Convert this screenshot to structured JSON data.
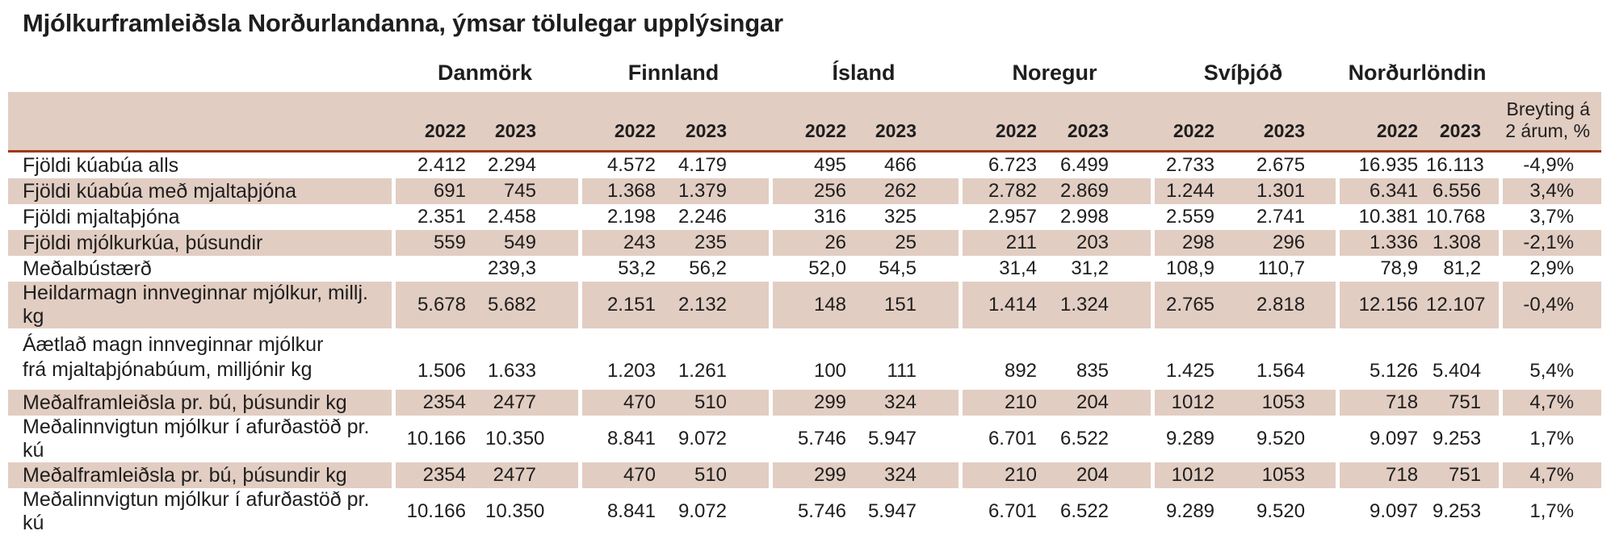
{
  "title": "Mjólkurframleiðsla Norðurlandanna, ýmsar tölulegar upplýsingar",
  "chart_data": {
    "type": "table",
    "title": "Mjólkurframleiðsla Norðurlandanna, ýmsar tölulegar upplýsingar",
    "column_groups": [
      "Danmörk",
      "Finnland",
      "Ísland",
      "Noregur",
      "Svíþjóð",
      "Norðurlöndin"
    ],
    "years": [
      "2022",
      "2023"
    ],
    "change_header_line1": "Breyting á",
    "change_header_line2": "2 árum, %",
    "rows": [
      {
        "label_lines": [
          "Fjöldi kúabúa alls"
        ],
        "shaded": false,
        "values": [
          "2.412",
          "2.294",
          "4.572",
          "4.179",
          "495",
          "466",
          "6.723",
          "6.499",
          "2.733",
          "2.675",
          "16.935",
          "16.113"
        ],
        "change": "-4,9%"
      },
      {
        "label_lines": [
          "Fjöldi kúabúa með mjaltaþjóna"
        ],
        "shaded": true,
        "values": [
          "691",
          "745",
          "1.368",
          "1.379",
          "256",
          "262",
          "2.782",
          "2.869",
          "1.244",
          "1.301",
          "6.341",
          "6.556"
        ],
        "change": "3,4%"
      },
      {
        "label_lines": [
          "Fjöldi mjaltaþjóna"
        ],
        "shaded": false,
        "values": [
          "2.351",
          "2.458",
          "2.198",
          "2.246",
          "316",
          "325",
          "2.957",
          "2.998",
          "2.559",
          "2.741",
          "10.381",
          "10.768"
        ],
        "change": "3,7%"
      },
      {
        "label_lines": [
          "Fjöldi mjólkurkúa, þúsundir"
        ],
        "shaded": true,
        "values": [
          "559",
          "549",
          "243",
          "235",
          "26",
          "25",
          "211",
          "203",
          "298",
          "296",
          "1.336",
          "1.308"
        ],
        "change": "-2,1%"
      },
      {
        "label_lines": [
          "Meðalbústærð"
        ],
        "shaded": false,
        "values": [
          "",
          "239,3",
          "53,2",
          "56,2",
          "52,0",
          "54,5",
          "31,4",
          "31,2",
          "108,9",
          "110,7",
          "78,9",
          "81,2"
        ],
        "change": "2,9%"
      },
      {
        "label_lines": [
          "Heildarmagn innveginnar mjólkur, millj. kg"
        ],
        "shaded": true,
        "values": [
          "5.678",
          "5.682",
          "2.151",
          "2.132",
          "148",
          "151",
          "1.414",
          "1.324",
          "2.765",
          "2.818",
          "12.156",
          "12.107"
        ],
        "change": "-0,4%"
      },
      {
        "label_lines": [
          "Áætlað magn innveginnar mjólkur",
          "frá mjaltaþjónabúum, milljónir kg"
        ],
        "shaded": false,
        "values": [
          "1.506",
          "1.633",
          "1.203",
          "1.261",
          "100",
          "111",
          "892",
          "835",
          "1.425",
          "1.564",
          "5.126",
          "5.404"
        ],
        "change": "5,4%"
      },
      {
        "label_lines": [
          "Meðalframleiðsla pr. bú, þúsundir kg"
        ],
        "shaded": true,
        "values": [
          "2354",
          "2477",
          "470",
          "510",
          "299",
          "324",
          "210",
          "204",
          "1012",
          "1053",
          "718",
          "751"
        ],
        "change": "4,7%"
      },
      {
        "label_lines": [
          "Meðalinnvigtun mjólkur í afurðastöð pr. kú"
        ],
        "shaded": false,
        "values": [
          "10.166",
          "10.350",
          "8.841",
          "9.072",
          "5.746",
          "5.947",
          "6.701",
          "6.522",
          "9.289",
          "9.520",
          "9.097",
          "9.253"
        ],
        "change": "1,7%"
      },
      {
        "label_lines": [
          "Meðalframleiðsla pr. bú, þúsundir kg"
        ],
        "shaded": true,
        "values": [
          "2354",
          "2477",
          "470",
          "510",
          "299",
          "324",
          "210",
          "204",
          "1012",
          "1053",
          "718",
          "751"
        ],
        "change": "4,7%"
      },
      {
        "label_lines": [
          "Meðalinnvigtun mjólkur í afurðastöð pr. kú"
        ],
        "shaded": false,
        "values": [
          "10.166",
          "10.350",
          "8.841",
          "9.072",
          "5.746",
          "5.947",
          "6.701",
          "6.522",
          "9.289",
          "9.520",
          "9.097",
          "9.253"
        ],
        "change": "1,7%"
      }
    ]
  },
  "colors": {
    "row_shade": "#e2cdc2",
    "header_band": "#e2cdc2",
    "rule_line": "#9c3a1c",
    "text": "#1e1e1e",
    "background": "#ffffff"
  }
}
